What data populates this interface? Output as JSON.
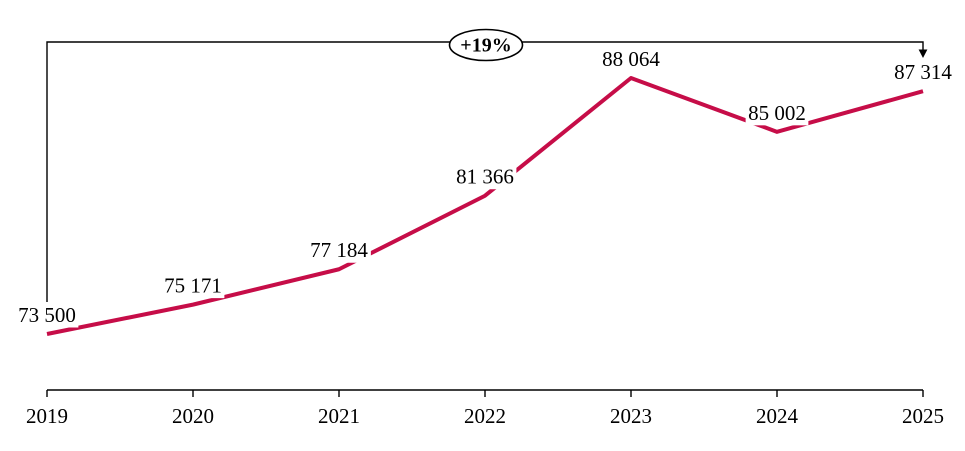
{
  "chart_data": {
    "type": "line",
    "categories": [
      "2019",
      "2020",
      "2021",
      "2022",
      "2023",
      "2024",
      "2025"
    ],
    "values": [
      73500,
      75171,
      77184,
      81366,
      88064,
      85002,
      87314
    ],
    "point_labels": [
      "73 500",
      "75 171",
      "77 184",
      "81 366",
      "88 064",
      "85 002",
      "87 314"
    ],
    "annotation": {
      "label": "+19%",
      "from_category": "2019",
      "to_category": "2025",
      "shape": "oval-with-bracket-arrow"
    },
    "xlabel": "",
    "ylabel": "",
    "ylim": [
      70400,
      90100
    ],
    "grid": false,
    "legend": "none",
    "markers": false,
    "colors": {
      "series": "#C60D48",
      "axis": "#000000",
      "label_text": "#000000",
      "background": "#FFFFFF"
    }
  }
}
